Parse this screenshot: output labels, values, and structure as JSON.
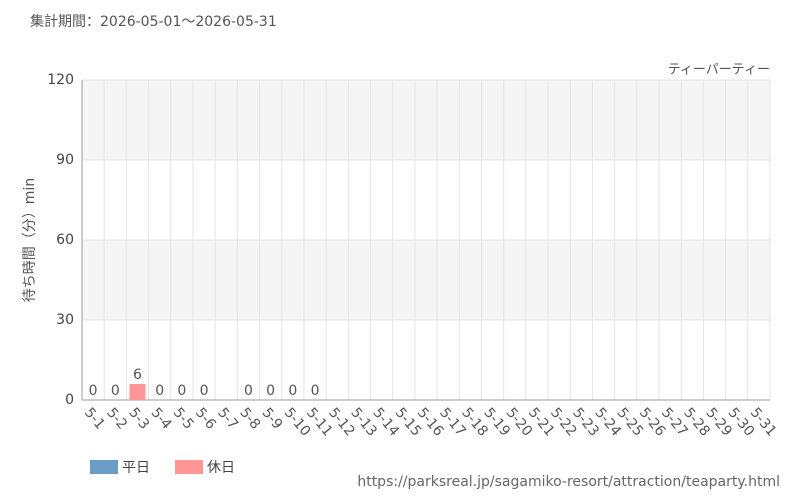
{
  "chart_data": {
    "type": "bar",
    "title": "集計期間：2026-05-01～2026-05-31",
    "subtitle": "ティーパーティー",
    "y_label": "待ち時間（分）min",
    "source": "https://parksreal.jp/sagamiko-resort/attraction/teaparty.html",
    "categories": [
      "5-1",
      "5-2",
      "5-3",
      "5-4",
      "5-5",
      "5-6",
      "5-7",
      "5-8",
      "5-9",
      "5-10",
      "5-11",
      "5-12",
      "5-13",
      "5-14",
      "5-15",
      "5-16",
      "5-17",
      "5-18",
      "5-19",
      "5-20",
      "5-21",
      "5-22",
      "5-23",
      "5-24",
      "5-25",
      "5-26",
      "5-27",
      "5-28",
      "5-29",
      "5-30",
      "5-31"
    ],
    "category_colors": [
      "#444",
      "#f99",
      "#f99",
      "#f99",
      "#f99",
      "#f99",
      "#444",
      "#444",
      "#f99",
      "#f99",
      "#444",
      "#444",
      "#444",
      "#444",
      "#444",
      "#f99",
      "#f99",
      "#444",
      "#444",
      "#444",
      "#444",
      "#444",
      "#f99",
      "#f99",
      "#444",
      "#444",
      "#444",
      "#444",
      "#444",
      "#f99",
      "#f99"
    ],
    "series": [
      {
        "name": "平日",
        "color": "#6a9cc6",
        "values": [
          0,
          null,
          null,
          null,
          null,
          null,
          null,
          0,
          null,
          null,
          0,
          null,
          null,
          null,
          null,
          null,
          null,
          null,
          null,
          null,
          null,
          null,
          null,
          null,
          null,
          null,
          null,
          null,
          null,
          null,
          null
        ]
      },
      {
        "name": "休日",
        "color": "#ff9696",
        "values": [
          null,
          0,
          6,
          0,
          0,
          0,
          null,
          null,
          0,
          0,
          null,
          null,
          null,
          null,
          null,
          null,
          null,
          null,
          null,
          null,
          null,
          null,
          null,
          null,
          null,
          null,
          null,
          null,
          null,
          null,
          null
        ]
      }
    ],
    "ylim": [
      0,
      120
    ],
    "yticks": [
      0,
      30,
      60,
      90,
      120
    ],
    "grid": true
  }
}
